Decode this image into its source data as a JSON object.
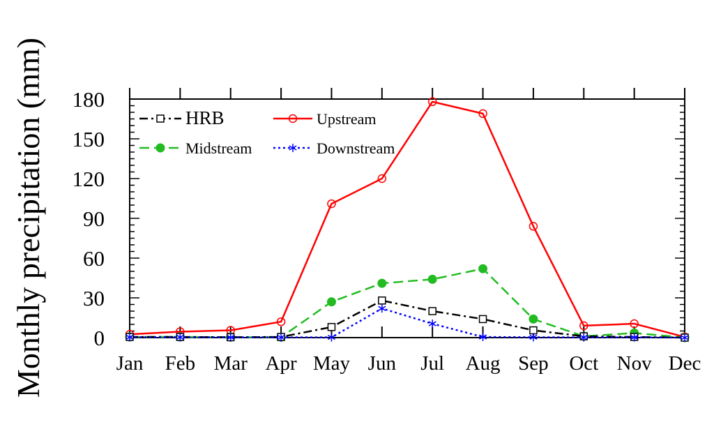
{
  "chart_data": {
    "type": "line",
    "title": "",
    "xlabel": "",
    "ylabel": "Monthly precipitation (mm)",
    "categories": [
      "Jan",
      "Feb",
      "Mar",
      "Apr",
      "May",
      "Jun",
      "Jul",
      "Aug",
      "Sep",
      "Oct",
      "Nov",
      "Dec"
    ],
    "ylim": [
      0,
      180
    ],
    "yticks": [
      "0",
      "30",
      "60",
      "90",
      "120",
      "150",
      "180"
    ],
    "legend_position": "top-left",
    "series": [
      {
        "name": "HRB",
        "color": "#000000",
        "dash": "dashdot",
        "marker": "square-open",
        "values": [
          0.5,
          0.5,
          0.3,
          0.5,
          8,
          28,
          20,
          14,
          5.5,
          1,
          0.5,
          0
        ]
      },
      {
        "name": "Upstream",
        "color": "#ff0000",
        "dash": "solid",
        "marker": "circle-open",
        "values": [
          2.5,
          4.5,
          5.5,
          12,
          101,
          120,
          178,
          169,
          84,
          9,
          10.5,
          0.5
        ]
      },
      {
        "name": "Midstream",
        "color": "#22bb22",
        "dash": "dashed",
        "marker": "circle-filled",
        "values": [
          0.5,
          0.5,
          0.3,
          0.3,
          27,
          41,
          44,
          52,
          14,
          1,
          3.5,
          0
        ]
      },
      {
        "name": "Downstream",
        "color": "#0000ff",
        "dash": "dotted",
        "marker": "asterisk",
        "values": [
          0.3,
          0.3,
          0.2,
          0.2,
          0.2,
          22,
          10.5,
          0.5,
          0.3,
          0.2,
          0.2,
          0
        ]
      }
    ]
  }
}
